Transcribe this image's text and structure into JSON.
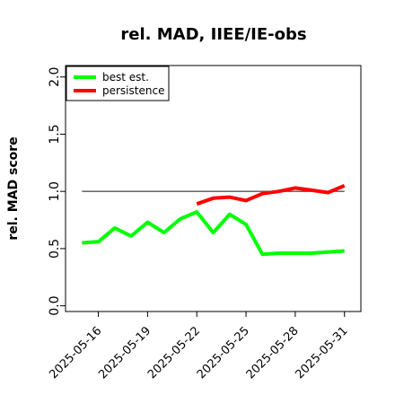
{
  "chart_data": {
    "type": "line",
    "title": "rel. MAD, IIEE/IE-obs",
    "xlabel": "",
    "ylabel": "rel. MAD score",
    "x_ticks": [
      "2025-05-16",
      "2025-05-19",
      "2025-05-22",
      "2025-05-25",
      "2025-05-28",
      "2025-05-31"
    ],
    "y_ticks": [
      "0.0",
      "0.5",
      "1.0",
      "1.5",
      "2.0"
    ],
    "ylim": [
      -0.05,
      2.1
    ],
    "xlim": [
      "2025-05-14",
      "2025-06-01"
    ],
    "legend": {
      "placement": "top-left",
      "entries": [
        {
          "label": "best est.",
          "color": "#00ff00"
        },
        {
          "label": "persistence",
          "color": "#ff0000"
        }
      ]
    },
    "reference_line": {
      "y": 1.0,
      "x_start": "2025-05-15",
      "x_end": "2025-05-31",
      "color": "#555555"
    },
    "series": [
      {
        "name": "best est.",
        "color": "#00ff00",
        "points": [
          {
            "x": "2025-05-15",
            "y": 0.55
          },
          {
            "x": "2025-05-16",
            "y": 0.56
          },
          {
            "x": "2025-05-17",
            "y": 0.68
          },
          {
            "x": "2025-05-18",
            "y": 0.61
          },
          {
            "x": "2025-05-19",
            "y": 0.73
          },
          {
            "x": "2025-05-20",
            "y": 0.64
          },
          {
            "x": "2025-05-21",
            "y": 0.76
          },
          {
            "x": "2025-05-22",
            "y": 0.82
          },
          {
            "x": "2025-05-23",
            "y": 0.64
          },
          {
            "x": "2025-05-24",
            "y": 0.8
          },
          {
            "x": "2025-05-25",
            "y": 0.71
          },
          {
            "x": "2025-05-26",
            "y": 0.45
          },
          {
            "x": "2025-05-27",
            "y": 0.46
          },
          {
            "x": "2025-05-28",
            "y": 0.46
          },
          {
            "x": "2025-05-29",
            "y": 0.46
          },
          {
            "x": "2025-05-30",
            "y": 0.47
          },
          {
            "x": "2025-05-31",
            "y": 0.48
          }
        ]
      },
      {
        "name": "persistence",
        "color": "#ff0000",
        "points": [
          {
            "x": "2025-05-22",
            "y": 0.89
          },
          {
            "x": "2025-05-23",
            "y": 0.94
          },
          {
            "x": "2025-05-24",
            "y": 0.95
          },
          {
            "x": "2025-05-25",
            "y": 0.92
          },
          {
            "x": "2025-05-26",
            "y": 0.98
          },
          {
            "x": "2025-05-27",
            "y": 1.0
          },
          {
            "x": "2025-05-28",
            "y": 1.03
          },
          {
            "x": "2025-05-29",
            "y": 1.01
          },
          {
            "x": "2025-05-30",
            "y": 0.99
          },
          {
            "x": "2025-05-31",
            "y": 1.05
          }
        ]
      }
    ]
  }
}
